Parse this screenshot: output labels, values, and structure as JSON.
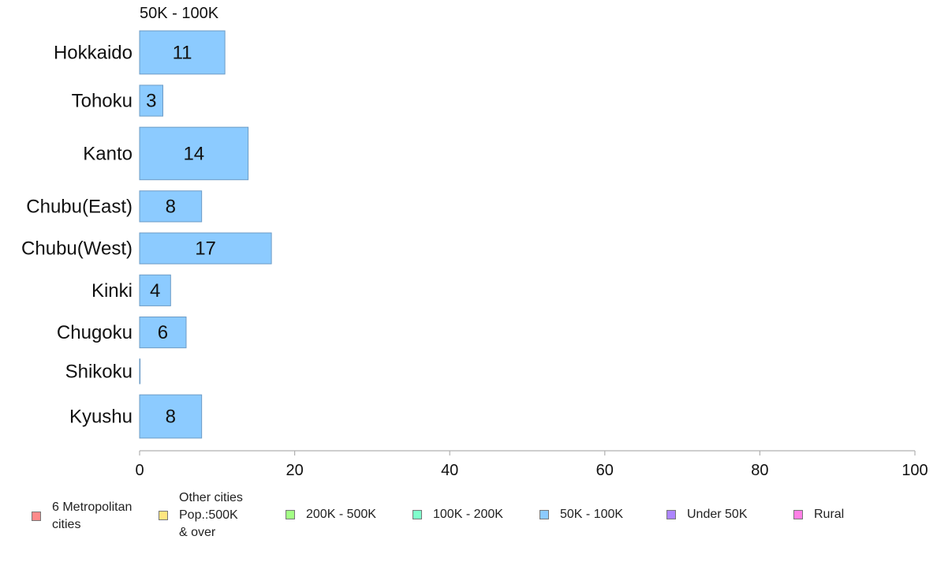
{
  "chart_data": {
    "type": "bar",
    "orientation": "horizontal",
    "title": "50K - 100K",
    "categories": [
      "Hokkaido",
      "Tohoku",
      "Kanto",
      "Chubu(East)",
      "Chubu(West)",
      "Kinki",
      "Chugoku",
      "Shikoku",
      "Kyushu"
    ],
    "values": [
      11,
      3,
      14,
      8,
      17,
      4,
      6,
      0,
      8
    ],
    "data_labels": [
      "11",
      "3",
      "14",
      "8",
      "17",
      "4",
      "6",
      "",
      "8"
    ],
    "bar_relative_widths": [
      0.7,
      0.5,
      0.85,
      0.5,
      0.5,
      0.5,
      0.5,
      0.4,
      0.7
    ],
    "xlim": [
      0,
      100
    ],
    "xticks": [
      0,
      20,
      40,
      60,
      80,
      100
    ],
    "xlabel": "",
    "ylabel": "",
    "grid": false,
    "bar_color": "#8ccbff",
    "bar_edge_color": "#6d9cc6",
    "legend_position": "bottom",
    "legend": [
      {
        "label": "6 Metropolitan\n cities",
        "color": "#ff8a8a"
      },
      {
        "label": "Other cities\nPop.:500K\n & over",
        "color": "#ffe680"
      },
      {
        "label": "200K - 500K",
        "color": "#a3ff85"
      },
      {
        "label": "100K - 200K",
        "color": "#80ffcc"
      },
      {
        "label": "50K - 100K",
        "color": "#8ccbff"
      },
      {
        "label": "Under 50K",
        "color": "#ad85ff"
      },
      {
        "label": "Rural",
        "color": "#ff80e6"
      }
    ]
  }
}
